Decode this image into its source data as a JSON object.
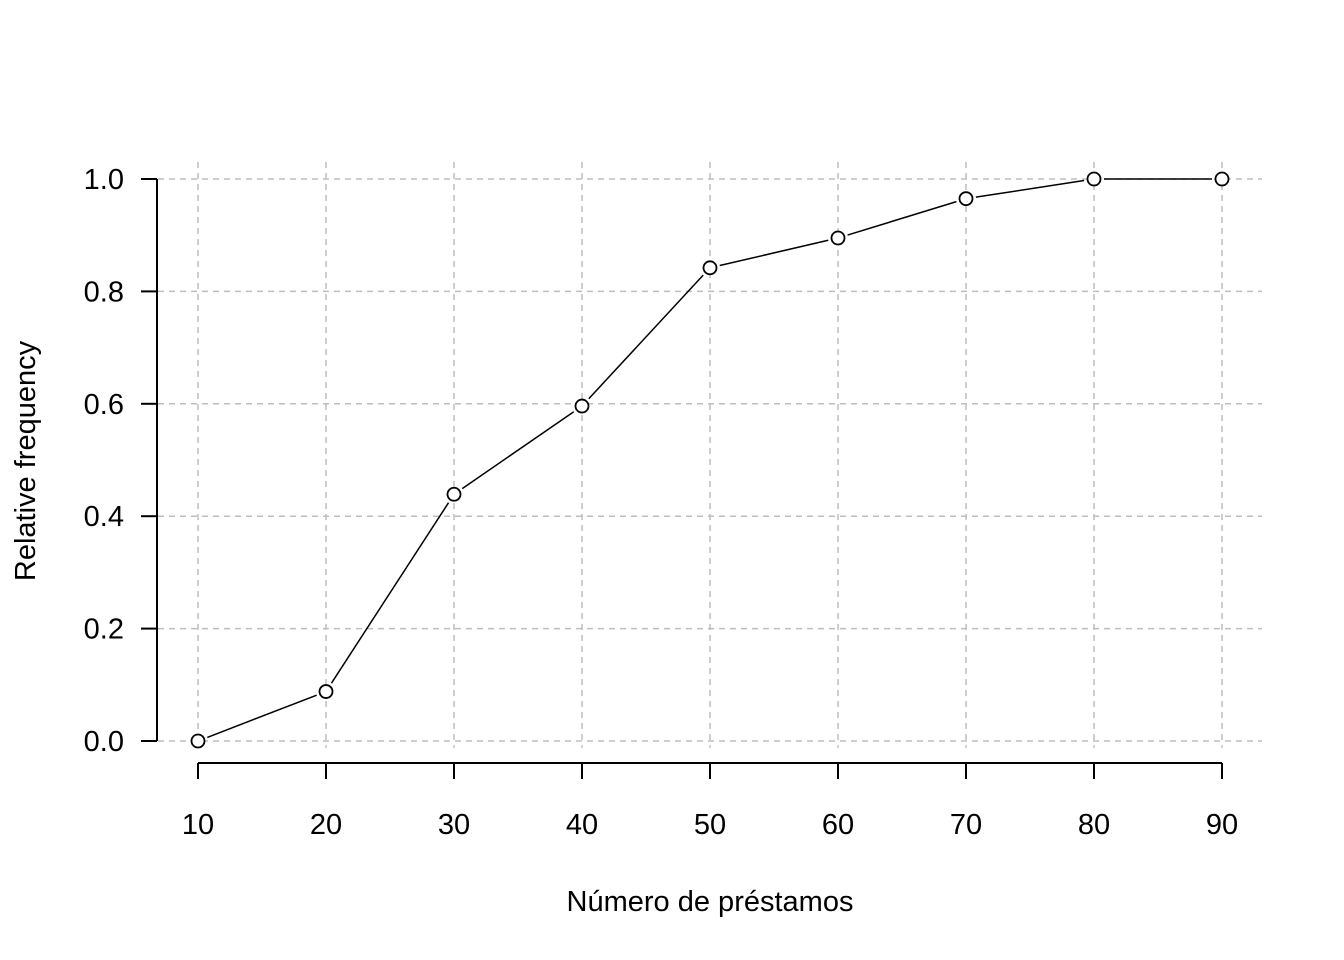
{
  "chart_data": {
    "type": "line",
    "title": "",
    "xlabel": "Número de préstamos",
    "ylabel": "Relative frequency",
    "x": [
      10,
      20,
      30,
      40,
      50,
      60,
      70,
      80,
      90
    ],
    "series": [
      {
        "values": [
          0.0,
          0.088,
          0.439,
          0.596,
          0.842,
          0.895,
          0.965,
          1.0,
          1.0
        ]
      }
    ],
    "xlim": [
      10,
      90
    ],
    "ylim": [
      0,
      1
    ],
    "x_ticks": [
      10,
      20,
      30,
      40,
      50,
      60,
      70,
      80,
      90
    ],
    "y_ticks": [
      0.0,
      0.2,
      0.4,
      0.6,
      0.8,
      1.0
    ],
    "x_tick_labels": [
      "10",
      "20",
      "30",
      "40",
      "50",
      "60",
      "70",
      "80",
      "90"
    ],
    "y_tick_labels": [
      "0.0",
      "0.2",
      "0.4",
      "0.6",
      "0.8",
      "1.0"
    ],
    "grid": true,
    "grid_style": "dashed",
    "marker": "open-circle",
    "colors": {
      "line": "#000000",
      "grid": "#bebebe",
      "axis": "#000000",
      "background": "#ffffff"
    }
  }
}
